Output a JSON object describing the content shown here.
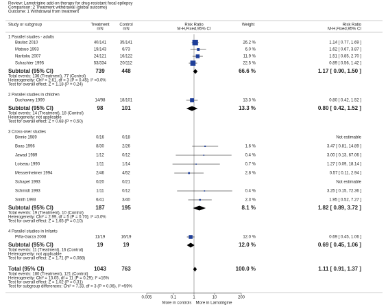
{
  "header": {
    "review": "Review:  Lamotrigine add-on therapy for drug-resistant focal epilepsy",
    "comparison": "Comparison:  2 Treatment withdrawal (global outcome)",
    "outcome": "Outcome:  1 Withdrawal from treatment"
  },
  "columns": {
    "study": "Study or subgroup",
    "treatment": "Treatment",
    "treatment_unit": "n/N",
    "control": "Control",
    "control_unit": "n/N",
    "plot": "Risk Ratio",
    "plot_method": "M-H,Fixed,95% CI",
    "weight": "Weight",
    "effect": "Risk Ratio",
    "effect_method": "M-H,Fixed,95% CI"
  },
  "chart_data": {
    "type": "forest",
    "xlim": [
      0.005,
      200
    ],
    "xticks": [
      0.005,
      0.1,
      1,
      10,
      200
    ],
    "log": true,
    "color": "#1f3f99",
    "left_label": "More in controls",
    "right_label": "More in Lamotrigine",
    "groups": [
      {
        "title": "1 Parallel studies - adults",
        "studies": [
          {
            "name": "Baulac 2010",
            "treatment": "40/141",
            "control": "35/141",
            "weight": {
              "value": 26.2,
              "label": "26.2 %"
            },
            "effect": {
              "value": 1.14,
              "low": 0.77,
              "high": 1.69,
              "label": "1.14 [ 0.77, 1.69 ]"
            }
          },
          {
            "name": "Matsuo 1993",
            "treatment": "19/143",
            "control": "6/73",
            "weight": {
              "value": 6.0,
              "label": "6.0 %"
            },
            "effect": {
              "value": 1.62,
              "low": 0.67,
              "high": 3.87,
              "label": "1.62 [ 0.67, 3.87 ]"
            }
          },
          {
            "name": "Naritoku 2007",
            "treatment": "24/121",
            "control": "16/122",
            "weight": {
              "value": 11.9,
              "label": "11.9 %"
            },
            "effect": {
              "value": 1.51,
              "low": 0.85,
              "high": 2.7,
              "label": "1.51 [ 0.85, 2.70 ]"
            }
          },
          {
            "name": "Schachter 1995",
            "treatment": "53/334",
            "control": "20/112",
            "weight": {
              "value": 22.5,
              "label": "22.5 %"
            },
            "effect": {
              "value": 0.89,
              "low": 0.56,
              "high": 1.42,
              "label": "0.89 [ 0.56, 1.42 ]"
            }
          }
        ],
        "subtotal": {
          "name": "Subtotal (95% CI)",
          "treatment": 739,
          "control": 448,
          "weight": {
            "value": 66.6,
            "label": "66.6 %"
          },
          "effect": {
            "value": 1.17,
            "low": 0.9,
            "high": 1.5,
            "label": "1.17 [ 0.90, 1.50 ]"
          }
        },
        "notes": [
          "Total events: 136 (Treatment), 77 (Control)",
          "Heterogeneity: Chi² = 2.61, df = 3 (P = 0.45); I² =0.0%",
          "Test for overall effect: Z = 1.18 (P = 0.24)"
        ]
      },
      {
        "title": "2 Parallel studies in children",
        "studies": [
          {
            "name": "Duchowny 1999",
            "treatment": "14/98",
            "control": "18/101",
            "weight": {
              "value": 13.3,
              "label": "13.3 %"
            },
            "effect": {
              "value": 0.8,
              "low": 0.42,
              "high": 1.52,
              "label": "0.80 [ 0.42, 1.52 ]"
            }
          }
        ],
        "subtotal": {
          "name": "Subtotal (95% CI)",
          "treatment": 98,
          "control": 101,
          "weight": {
            "value": 13.3,
            "label": "13.3 %"
          },
          "effect": {
            "value": 0.8,
            "low": 0.42,
            "high": 1.52,
            "label": "0.80 [ 0.42, 1.52 ]"
          }
        },
        "notes": [
          "Total events: 14 (Treatment), 18 (Control)",
          "Heterogeneity: not applicable",
          "Test for overall effect: Z = 0.68 (P = 0.50)"
        ]
      },
      {
        "title": "3 Cross-over studies",
        "studies": [
          {
            "name": "Binnie 1989",
            "treatment": "0/16",
            "control": "0/18",
            "weight": null,
            "effect": {
              "label": "Not estimable"
            }
          },
          {
            "name": "Boas 1996",
            "treatment": "8/30",
            "control": "2/26",
            "weight": {
              "value": 1.6,
              "label": "1.6 %"
            },
            "effect": {
              "value": 3.47,
              "low": 0.81,
              "high": 14.89,
              "label": "3.47 [ 0.81, 14.89 ]"
            }
          },
          {
            "name": "Jawad 1989",
            "treatment": "1/12",
            "control": "0/12",
            "weight": {
              "value": 0.4,
              "label": "0.4 %"
            },
            "effect": {
              "value": 3.0,
              "low": 0.13,
              "high": 67.06,
              "label": "3.00 [ 0.13, 67.06 ]"
            }
          },
          {
            "name": "Loiseau 1990",
            "treatment": "1/11",
            "control": "1/14",
            "weight": {
              "value": 0.7,
              "label": "0.7 %"
            },
            "effect": {
              "value": 1.27,
              "low": 0.09,
              "high": 18.14,
              "label": "1.27 [ 0.09, 18.14 ]"
            }
          },
          {
            "name": "Messenheimer 1994",
            "treatment": "2/46",
            "control": "4/52",
            "weight": {
              "value": 2.8,
              "label": "2.8 %"
            },
            "effect": {
              "value": 0.57,
              "low": 0.11,
              "high": 2.94,
              "label": "0.57 [ 0.11, 2.94 ]"
            }
          },
          {
            "name": "Schapel 1993",
            "treatment": "0/20",
            "control": "0/21",
            "weight": null,
            "effect": {
              "label": "Not estimable"
            }
          },
          {
            "name": "Schmidt 1993",
            "treatment": "1/11",
            "control": "0/12",
            "weight": {
              "value": 0.4,
              "label": "0.4 %"
            },
            "effect": {
              "value": 3.25,
              "low": 0.15,
              "high": 72.36,
              "label": "3.25 [ 0.15, 72.36 ]"
            }
          },
          {
            "name": "Smith 1993",
            "treatment": "6/41",
            "control": "3/40",
            "weight": {
              "value": 2.3,
              "label": "2.3 %"
            },
            "effect": {
              "value": 1.95,
              "low": 0.52,
              "high": 7.27,
              "label": "1.95 [ 0.52, 7.27 ]"
            }
          }
        ],
        "subtotal": {
          "name": "Subtotal (95% CI)",
          "treatment": 187,
          "control": 195,
          "weight": {
            "value": 8.1,
            "label": "8.1 %"
          },
          "effect": {
            "value": 1.82,
            "low": 0.89,
            "high": 3.72,
            "label": "1.82 [ 0.89, 3.72 ]"
          }
        },
        "notes": [
          "Total events: 19 (Treatment), 10 (Control)",
          "Heterogeneity: Chi² = 2.99, df = 5 (P = 0.70); I² =0.0%",
          "Test for overall effect: Z = 1.65 (P = 0.10)"
        ]
      },
      {
        "title": "4 Parallel studies in Infants",
        "studies": [
          {
            "name": "Piña-Garza 2008",
            "treatment": "11/19",
            "control": "16/19",
            "weight": {
              "value": 12.0,
              "label": "12.0 %"
            },
            "effect": {
              "value": 0.69,
              "low": 0.45,
              "high": 1.06,
              "label": "0.69 [ 0.45, 1.06 ]"
            }
          }
        ],
        "subtotal": {
          "name": "Subtotal (95% CI)",
          "treatment": 19,
          "control": 19,
          "weight": {
            "value": 12.0,
            "label": "12.0 %"
          },
          "effect": {
            "value": 0.69,
            "low": 0.45,
            "high": 1.06,
            "label": "0.69 [ 0.45, 1.06 ]"
          }
        },
        "notes": [
          "Total events: 11 (Treatment), 16 (Control)",
          "Heterogeneity: not applicable",
          "Test for overall effect: Z = 1.71 (P = 0.088)"
        ]
      }
    ],
    "total": {
      "name": "Total (95% CI)",
      "treatment": 1043,
      "control": 763,
      "weight": {
        "value": 100.0,
        "label": "100.0 %"
      },
      "effect": {
        "value": 1.11,
        "low": 0.91,
        "high": 1.37,
        "label": "1.11 [ 0.91, 1.37 ]"
      },
      "notes": [
        "Total events: 180 (Treatment), 121 (Control)",
        "Heterogeneity: Chi² = 13.05, df = 11 (P = 0.29); I² =16%",
        "Test for overall effect: Z = 1.02 (P = 0.31)",
        "Test for subgroup differences: Chi² = 7.33, df = 3 (P = 0.06), I² =59%"
      ]
    }
  }
}
